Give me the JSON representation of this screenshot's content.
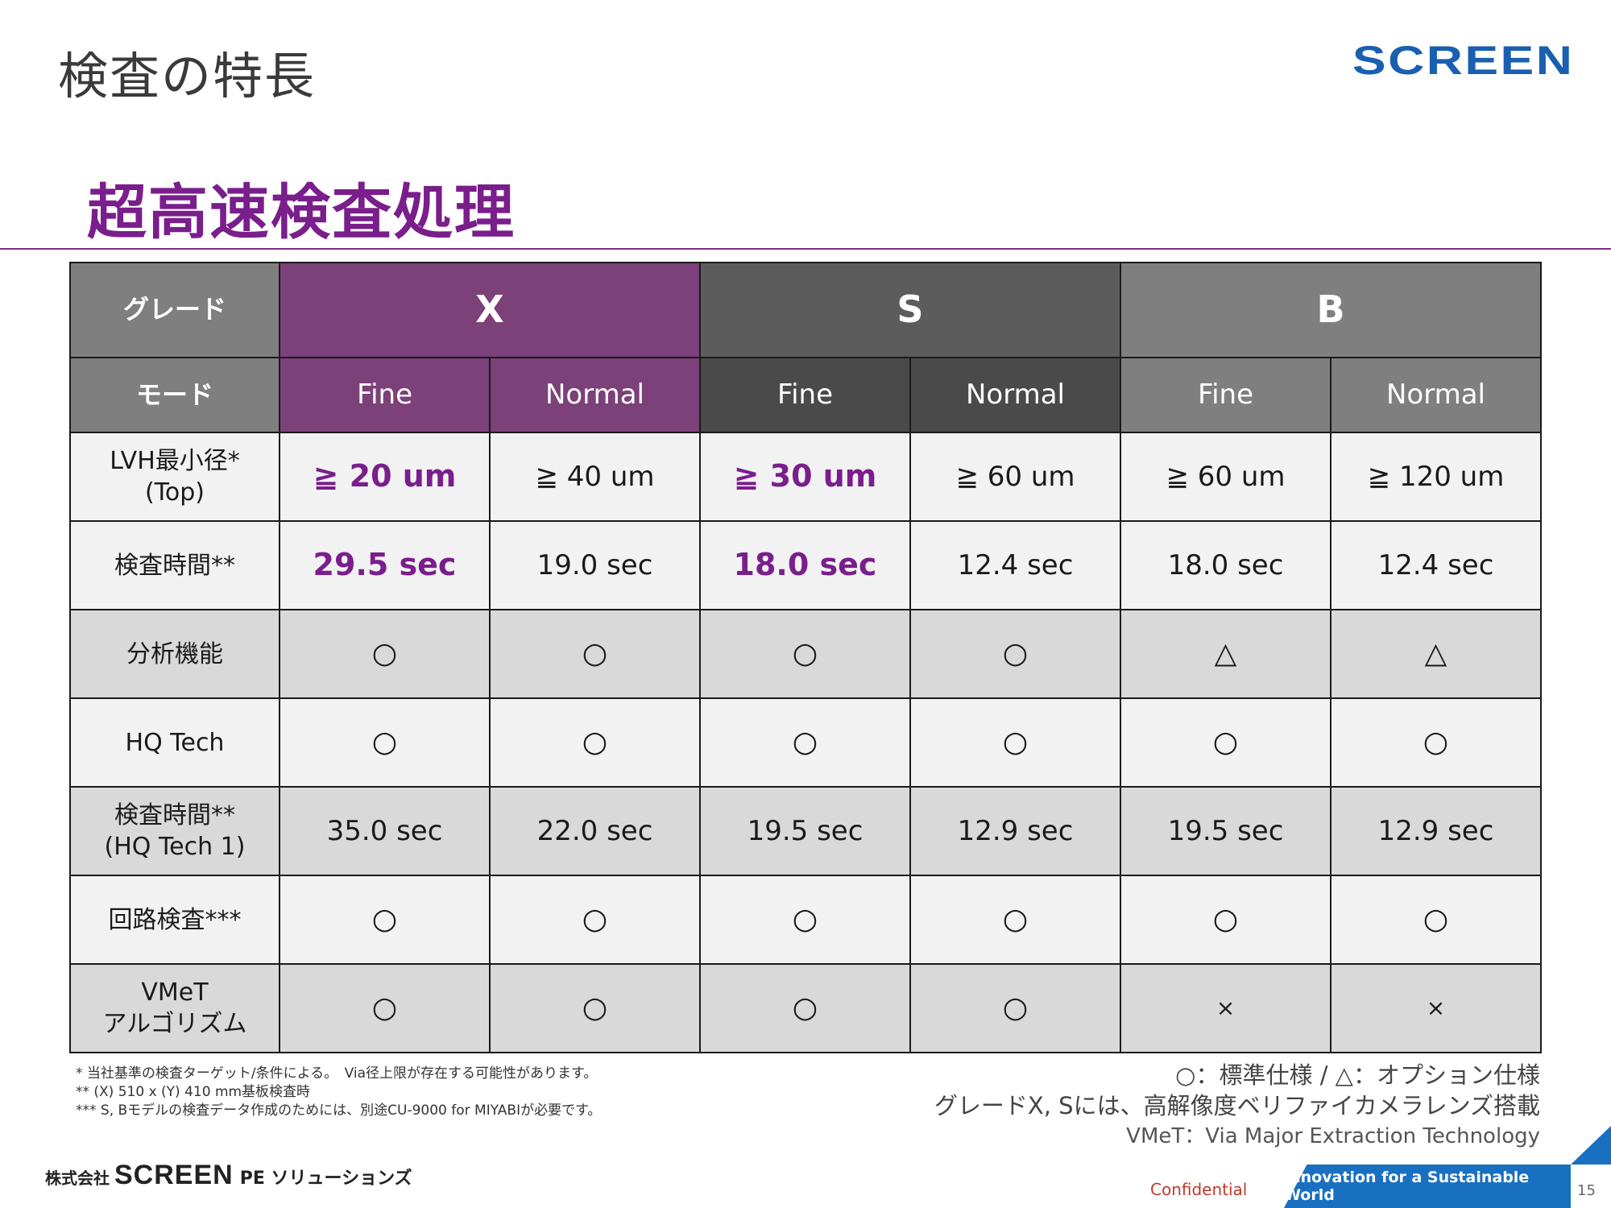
{
  "header": {
    "page_title": "検査の特長",
    "logo_text": "SCREEN",
    "section_title": "超高速検査処理"
  },
  "table": {
    "grade_label": "グレード",
    "mode_label": "モード",
    "grades": [
      "X",
      "S",
      "B"
    ],
    "modes": [
      "Fine",
      "Normal",
      "Fine",
      "Normal",
      "Fine",
      "Normal"
    ],
    "rows": [
      {
        "label": "LVH最小径*",
        "label2": "(Top)",
        "values": [
          "≧ 20 um",
          "≧ 40 um",
          "≧ 30 um",
          "≧ 60 um",
          "≧ 60 um",
          "≧ 120 um"
        ]
      },
      {
        "label": "検査時間**",
        "label2": "",
        "values": [
          "29.5 sec",
          "19.0 sec",
          "18.0 sec",
          "12.4 sec",
          "18.0 sec",
          "12.4 sec"
        ]
      },
      {
        "label": "分析機能",
        "label2": "",
        "values": [
          "○",
          "○",
          "○",
          "○",
          "△",
          "△"
        ]
      },
      {
        "label": "HQ Tech",
        "label2": "",
        "values": [
          "○",
          "○",
          "○",
          "○",
          "○",
          "○"
        ]
      },
      {
        "label": "検査時間**",
        "label2": "(HQ Tech 1)",
        "values": [
          "35.0 sec",
          "22.0 sec",
          "19.5 sec",
          "12.9 sec",
          "19.5 sec",
          "12.9 sec"
        ]
      },
      {
        "label": "回路検査***",
        "label2": "",
        "values": [
          "○",
          "○",
          "○",
          "○",
          "○",
          "○"
        ]
      },
      {
        "label": "VMeT",
        "label2": "アルゴリズム",
        "values": [
          "○",
          "○",
          "○",
          "○",
          "×",
          "×"
        ]
      }
    ]
  },
  "notes_left": [
    "* 当社基準の検査ターゲット/条件による。　Via径上限が存在する可能性があります。",
    "** (X) 510 x (Y) 410 mm基板検査時",
    "*** S, Bモデルの検査データ作成のためには、別途CU-9000 for MIYABIが必要です。"
  ],
  "notes_right": [
    "○：標準仕様 / △：オプション仕様",
    "グレードX, Sには、高解像度ベリファイカメラレンズ搭載",
    "VMeT：Via Major Extraction Technology"
  ],
  "footer": {
    "logo_prefix": "株式会社",
    "logo_main": "SCREEN",
    "logo_suffix": "PE ソリューションズ",
    "confidential": "Confidential",
    "banner": "Innovation for a Sustainable World",
    "page_number": "15"
  }
}
